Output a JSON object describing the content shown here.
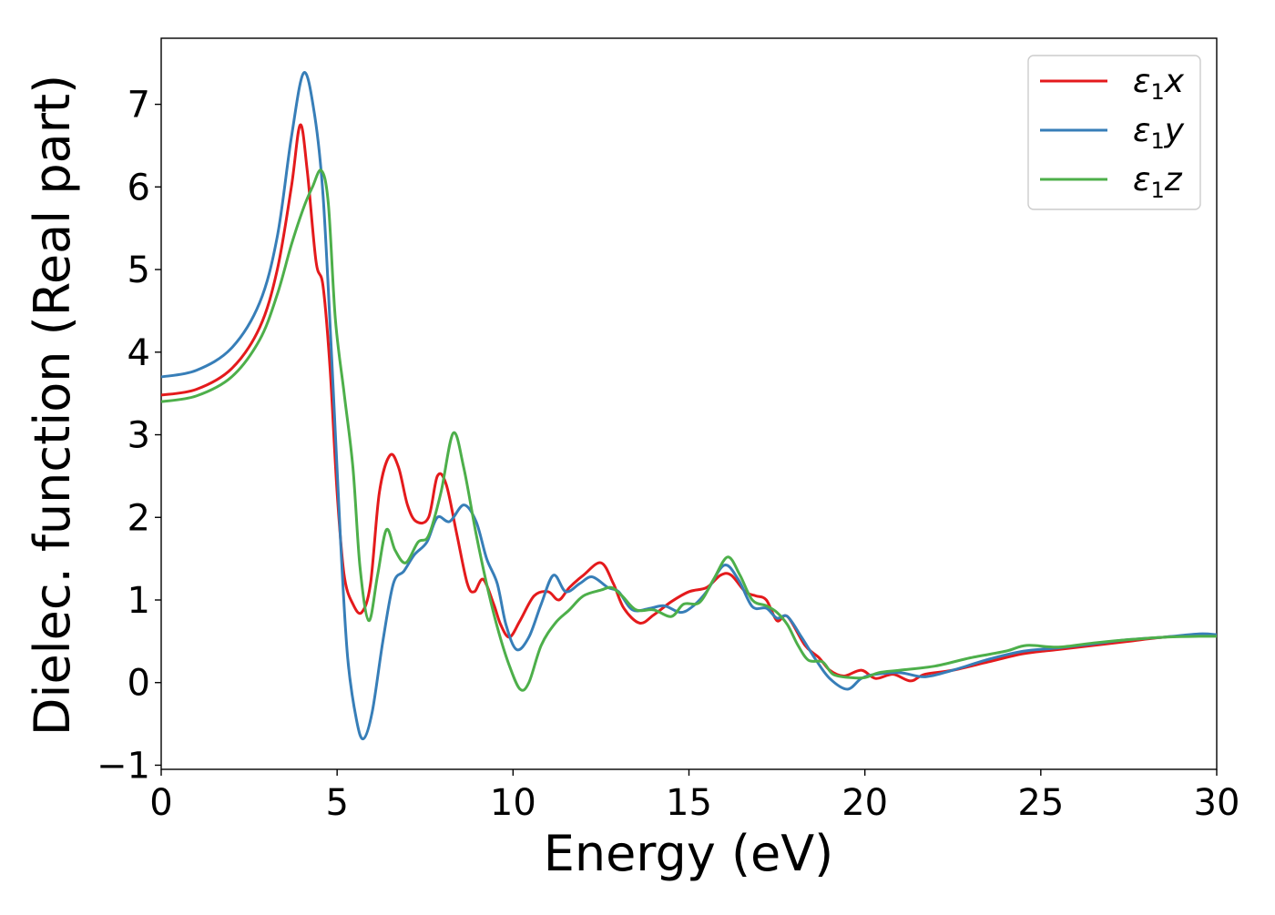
{
  "chart_data": {
    "type": "line",
    "xlabel": "Energy (eV)",
    "ylabel": "Dielec. function (Real part)",
    "xlim": [
      0,
      30
    ],
    "ylim": [
      -1.05,
      7.8
    ],
    "xticks": [
      0,
      5,
      10,
      15,
      20,
      25,
      30
    ],
    "xtick_labels": [
      "0",
      "5",
      "10",
      "15",
      "20",
      "25",
      "30"
    ],
    "yticks": [
      -1,
      0,
      1,
      2,
      3,
      4,
      5,
      6,
      7
    ],
    "ytick_labels": [
      "−1",
      "0",
      "1",
      "2",
      "3",
      "4",
      "5",
      "6",
      "7"
    ],
    "grid": false,
    "legend_position": "top-right",
    "series": [
      {
        "name": "ε₁x",
        "legend_main": "ε",
        "legend_sub": "1",
        "legend_tail": "x",
        "color": "#e41a1c",
        "points": [
          [
            0,
            3.48
          ],
          [
            1,
            3.55
          ],
          [
            2,
            3.8
          ],
          [
            2.8,
            4.3
          ],
          [
            3.3,
            5.0
          ],
          [
            3.7,
            6.0
          ],
          [
            3.95,
            6.75
          ],
          [
            4.15,
            6.2
          ],
          [
            4.4,
            5.1
          ],
          [
            4.6,
            4.8
          ],
          [
            4.8,
            3.8
          ],
          [
            5.0,
            2.3
          ],
          [
            5.2,
            1.3
          ],
          [
            5.45,
            0.95
          ],
          [
            5.7,
            0.85
          ],
          [
            5.95,
            1.2
          ],
          [
            6.2,
            2.3
          ],
          [
            6.5,
            2.75
          ],
          [
            6.75,
            2.6
          ],
          [
            7.0,
            2.15
          ],
          [
            7.25,
            1.95
          ],
          [
            7.6,
            2.0
          ],
          [
            7.85,
            2.5
          ],
          [
            8.1,
            2.4
          ],
          [
            8.4,
            1.8
          ],
          [
            8.7,
            1.2
          ],
          [
            8.9,
            1.1
          ],
          [
            9.15,
            1.25
          ],
          [
            9.45,
            0.95
          ],
          [
            9.65,
            0.7
          ],
          [
            9.9,
            0.55
          ],
          [
            10.2,
            0.75
          ],
          [
            10.6,
            1.05
          ],
          [
            11.0,
            1.1
          ],
          [
            11.3,
            1.0
          ],
          [
            11.6,
            1.15
          ],
          [
            12.0,
            1.3
          ],
          [
            12.5,
            1.45
          ],
          [
            12.85,
            1.2
          ],
          [
            13.15,
            0.9
          ],
          [
            13.6,
            0.72
          ],
          [
            14.0,
            0.82
          ],
          [
            14.5,
            0.98
          ],
          [
            15.0,
            1.1
          ],
          [
            15.5,
            1.15
          ],
          [
            15.9,
            1.3
          ],
          [
            16.2,
            1.3
          ],
          [
            16.6,
            1.1
          ],
          [
            16.9,
            1.05
          ],
          [
            17.2,
            1.0
          ],
          [
            17.5,
            0.75
          ],
          [
            17.8,
            0.8
          ],
          [
            18.3,
            0.45
          ],
          [
            18.7,
            0.3
          ],
          [
            19.0,
            0.15
          ],
          [
            19.4,
            0.08
          ],
          [
            19.9,
            0.15
          ],
          [
            20.3,
            0.05
          ],
          [
            20.8,
            0.1
          ],
          [
            21.3,
            0.02
          ],
          [
            21.7,
            0.1
          ],
          [
            22.5,
            0.15
          ],
          [
            23.5,
            0.25
          ],
          [
            24.5,
            0.35
          ],
          [
            25.5,
            0.4
          ],
          [
            26.5,
            0.45
          ],
          [
            27.5,
            0.5
          ],
          [
            28.5,
            0.55
          ],
          [
            29.5,
            0.57
          ],
          [
            30,
            0.58
          ]
        ]
      },
      {
        "name": "ε₁y",
        "legend_main": "ε",
        "legend_sub": "1",
        "legend_tail": "y",
        "color": "#377eb8",
        "points": [
          [
            0,
            3.7
          ],
          [
            1,
            3.78
          ],
          [
            2,
            4.05
          ],
          [
            2.8,
            4.6
          ],
          [
            3.3,
            5.4
          ],
          [
            3.7,
            6.6
          ],
          [
            4.05,
            7.38
          ],
          [
            4.35,
            6.9
          ],
          [
            4.6,
            5.9
          ],
          [
            4.85,
            3.9
          ],
          [
            5.1,
            1.7
          ],
          [
            5.3,
            0.3
          ],
          [
            5.55,
            -0.45
          ],
          [
            5.75,
            -0.68
          ],
          [
            6.0,
            -0.35
          ],
          [
            6.3,
            0.5
          ],
          [
            6.6,
            1.2
          ],
          [
            6.9,
            1.35
          ],
          [
            7.2,
            1.55
          ],
          [
            7.55,
            1.7
          ],
          [
            7.85,
            2.0
          ],
          [
            8.2,
            1.95
          ],
          [
            8.6,
            2.15
          ],
          [
            8.95,
            1.95
          ],
          [
            9.25,
            1.5
          ],
          [
            9.55,
            1.2
          ],
          [
            9.8,
            0.7
          ],
          [
            10.1,
            0.4
          ],
          [
            10.45,
            0.55
          ],
          [
            10.8,
            0.95
          ],
          [
            11.15,
            1.3
          ],
          [
            11.5,
            1.1
          ],
          [
            11.9,
            1.2
          ],
          [
            12.25,
            1.28
          ],
          [
            12.7,
            1.15
          ],
          [
            13.0,
            1.1
          ],
          [
            13.4,
            0.88
          ],
          [
            13.9,
            0.9
          ],
          [
            14.3,
            0.93
          ],
          [
            14.75,
            0.85
          ],
          [
            15.1,
            0.92
          ],
          [
            15.5,
            1.1
          ],
          [
            16.0,
            1.42
          ],
          [
            16.4,
            1.25
          ],
          [
            16.8,
            0.92
          ],
          [
            17.2,
            0.9
          ],
          [
            17.5,
            0.78
          ],
          [
            17.8,
            0.8
          ],
          [
            18.2,
            0.55
          ],
          [
            18.6,
            0.28
          ],
          [
            19.0,
            0.05
          ],
          [
            19.5,
            -0.08
          ],
          [
            19.9,
            0.05
          ],
          [
            20.3,
            0.1
          ],
          [
            21.0,
            0.12
          ],
          [
            21.7,
            0.07
          ],
          [
            22.5,
            0.15
          ],
          [
            23.5,
            0.28
          ],
          [
            24.5,
            0.38
          ],
          [
            25.5,
            0.42
          ],
          [
            26.5,
            0.47
          ],
          [
            27.5,
            0.52
          ],
          [
            28.5,
            0.55
          ],
          [
            29.5,
            0.59
          ],
          [
            30,
            0.58
          ]
        ]
      },
      {
        "name": "ε₁z",
        "legend_main": "ε",
        "legend_sub": "1",
        "legend_tail": "z",
        "color": "#4daf4a",
        "points": [
          [
            0,
            3.4
          ],
          [
            1,
            3.47
          ],
          [
            2,
            3.7
          ],
          [
            2.8,
            4.15
          ],
          [
            3.3,
            4.7
          ],
          [
            3.7,
            5.3
          ],
          [
            4.05,
            5.75
          ],
          [
            4.3,
            6.0
          ],
          [
            4.55,
            6.2
          ],
          [
            4.75,
            5.8
          ],
          [
            4.95,
            4.4
          ],
          [
            5.2,
            3.5
          ],
          [
            5.45,
            2.6
          ],
          [
            5.65,
            1.4
          ],
          [
            5.9,
            0.75
          ],
          [
            6.15,
            1.3
          ],
          [
            6.4,
            1.85
          ],
          [
            6.65,
            1.6
          ],
          [
            6.95,
            1.45
          ],
          [
            7.3,
            1.7
          ],
          [
            7.6,
            1.78
          ],
          [
            7.95,
            2.3
          ],
          [
            8.3,
            3.02
          ],
          [
            8.6,
            2.6
          ],
          [
            8.95,
            1.8
          ],
          [
            9.3,
            1.1
          ],
          [
            9.6,
            0.6
          ],
          [
            9.9,
            0.2
          ],
          [
            10.2,
            -0.08
          ],
          [
            10.45,
            0.0
          ],
          [
            10.8,
            0.45
          ],
          [
            11.2,
            0.72
          ],
          [
            11.6,
            0.88
          ],
          [
            12.0,
            1.05
          ],
          [
            12.5,
            1.12
          ],
          [
            12.8,
            1.15
          ],
          [
            13.1,
            1.05
          ],
          [
            13.5,
            0.88
          ],
          [
            14.0,
            0.88
          ],
          [
            14.5,
            0.8
          ],
          [
            14.85,
            0.95
          ],
          [
            15.3,
            0.97
          ],
          [
            15.7,
            1.25
          ],
          [
            16.1,
            1.52
          ],
          [
            16.45,
            1.3
          ],
          [
            16.8,
            1.0
          ],
          [
            17.2,
            0.93
          ],
          [
            17.5,
            0.85
          ],
          [
            17.8,
            0.7
          ],
          [
            18.1,
            0.45
          ],
          [
            18.4,
            0.27
          ],
          [
            18.8,
            0.25
          ],
          [
            19.1,
            0.1
          ],
          [
            19.6,
            0.06
          ],
          [
            20.0,
            0.06
          ],
          [
            20.4,
            0.12
          ],
          [
            21.0,
            0.15
          ],
          [
            22.0,
            0.2
          ],
          [
            23.0,
            0.3
          ],
          [
            24.0,
            0.38
          ],
          [
            24.6,
            0.45
          ],
          [
            25.5,
            0.43
          ],
          [
            26.5,
            0.48
          ],
          [
            27.5,
            0.52
          ],
          [
            28.5,
            0.55
          ],
          [
            29.5,
            0.56
          ],
          [
            30,
            0.56
          ]
        ]
      }
    ]
  }
}
